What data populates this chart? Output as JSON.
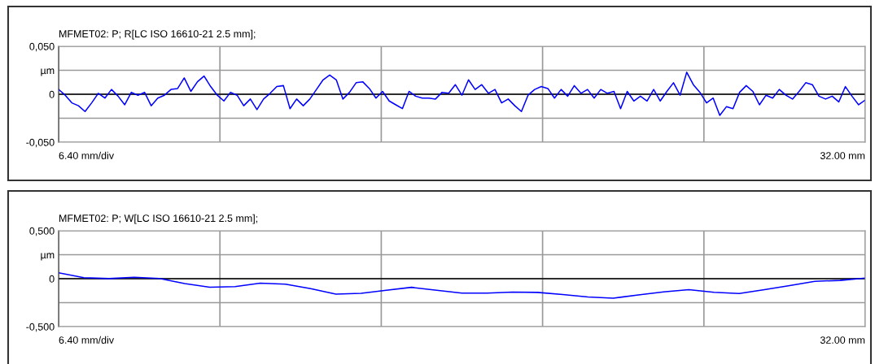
{
  "chart_data": [
    {
      "type": "line",
      "title": "MFMET02: P; R[LC ISO 16610-21 2.5 mm];",
      "annotations": [
        "6.40 mm/div",
        "32.00 mm"
      ],
      "categories": [
        null,
        null,
        null,
        null,
        null,
        null,
        null,
        null,
        null,
        null,
        null,
        null,
        null,
        null,
        null,
        null,
        null,
        null,
        null,
        null,
        null,
        null,
        null,
        null,
        null,
        null,
        null,
        null,
        null,
        null,
        null,
        null,
        null,
        null,
        null,
        null,
        null,
        null,
        null,
        null,
        null,
        null,
        null,
        null,
        null,
        null,
        null,
        null,
        null,
        null,
        null,
        null,
        null,
        null,
        null,
        null,
        null,
        null,
        null,
        null,
        null,
        null,
        null,
        null,
        null,
        null,
        null,
        null,
        null,
        null,
        null,
        null,
        null,
        null,
        null,
        null,
        null,
        null,
        null,
        null,
        null,
        null,
        null,
        null,
        null,
        null,
        null,
        null,
        null,
        null,
        null,
        null,
        null,
        null,
        null,
        null,
        null,
        null,
        null,
        null,
        null,
        null,
        null,
        null,
        null,
        null,
        null,
        null,
        null,
        null,
        null,
        null,
        null,
        null,
        null,
        null,
        null,
        null,
        null,
        null,
        null,
        null,
        null
      ],
      "ylim": [
        -0.05,
        0.05
      ],
      "yticks": [
        {
          "value": -0.05,
          "label": "-0,050"
        },
        {
          "value": -0.025,
          "label": null
        },
        {
          "value": 0,
          "label": "0"
        },
        {
          "value": 0.025,
          "label": "µm"
        },
        {
          "value": 0.05,
          "label": "0,050"
        }
      ],
      "grid": true,
      "marker": "none",
      "line_style": "solid",
      "ref_lines": [
        {
          "axis": "y",
          "value": 0,
          "label": null,
          "color": "#000000"
        }
      ],
      "series": [
        {
          "color": "#0000ff",
          "values": [
            0.005,
            -0.001,
            -0.009,
            -0.012,
            -0.018,
            -0.009,
            0.001,
            -0.004,
            0.005,
            -0.002,
            -0.011,
            0.002,
            -0.001,
            0.002,
            -0.012,
            -0.004,
            -0.001,
            0.005,
            0.006,
            0.017,
            0.003,
            0.013,
            0.019,
            0.008,
            -0.001,
            -0.007,
            0.002,
            -0.001,
            -0.012,
            -0.005,
            -0.016,
            -0.005,
            0.001,
            0.008,
            0.009,
            -0.015,
            -0.005,
            -0.012,
            -0.005,
            0.005,
            0.015,
            0.02,
            0.015,
            -0.005,
            0.002,
            0.012,
            0.013,
            0.006,
            -0.004,
            0.003,
            -0.007,
            -0.011,
            -0.015,
            0.003,
            -0.002,
            -0.004,
            -0.004,
            -0.005,
            0.002,
            0.001,
            0.01,
            -0.001,
            0.015,
            0.005,
            0.01,
            0.001,
            0.005,
            -0.009,
            -0.005,
            -0.012,
            -0.018,
            -0.001,
            0.005,
            0.008,
            0.006,
            -0.004,
            0.005,
            -0.002,
            0.009,
            0.001,
            0.005,
            -0.004,
            0.005,
            0.001,
            0.003,
            -0.015,
            0.003,
            -0.007,
            -0.002,
            -0.007,
            0.005,
            -0.007,
            0.003,
            0.012,
            -0.001,
            0.023,
            0.01,
            0.002,
            -0.009,
            -0.004,
            -0.022,
            -0.013,
            -0.015,
            0.002,
            0.009,
            0.003,
            -0.011,
            -0.001,
            -0.004,
            0.005,
            -0.001,
            -0.005,
            0.003,
            0.012,
            0.01,
            -0.002,
            -0.005,
            -0.002,
            -0.008,
            0.008,
            -0.002,
            -0.011,
            -0.006
          ]
        }
      ]
    },
    {
      "type": "line",
      "title": "MFMET02: P; W[LC ISO 16610-21 2.5 mm];",
      "annotations": [
        "6.40 mm/div",
        "32.00 mm"
      ],
      "categories": [
        null,
        null,
        null,
        null,
        null,
        null,
        null,
        null,
        null,
        null,
        null,
        null,
        null,
        null,
        null,
        null,
        null,
        null,
        null,
        null,
        null,
        null,
        null,
        null,
        null,
        null,
        null,
        null,
        null,
        null,
        null,
        null,
        null
      ],
      "ylim": [
        -0.5,
        0.5
      ],
      "yticks": [
        {
          "value": -0.5,
          "label": "-0,500"
        },
        {
          "value": -0.25,
          "label": null
        },
        {
          "value": 0,
          "label": "0"
        },
        {
          "value": 0.25,
          "label": "µm"
        },
        {
          "value": 0.5,
          "label": "0,500"
        }
      ],
      "grid": true,
      "marker": "none",
      "line_style": "solid",
      "ref_lines": [
        {
          "axis": "y",
          "value": 0,
          "label": null,
          "color": "#000000"
        }
      ],
      "series": [
        {
          "color": "#0000ff",
          "values": [
            0.061,
            0.01,
            0.001,
            0.014,
            0.003,
            -0.05,
            -0.089,
            -0.083,
            -0.047,
            -0.058,
            -0.103,
            -0.161,
            -0.152,
            -0.12,
            -0.09,
            -0.121,
            -0.151,
            -0.151,
            -0.14,
            -0.143,
            -0.165,
            -0.191,
            -0.203,
            -0.17,
            -0.138,
            -0.114,
            -0.142,
            -0.154,
            -0.114,
            -0.072,
            -0.027,
            -0.018,
            0.006
          ]
        }
      ]
    }
  ]
}
